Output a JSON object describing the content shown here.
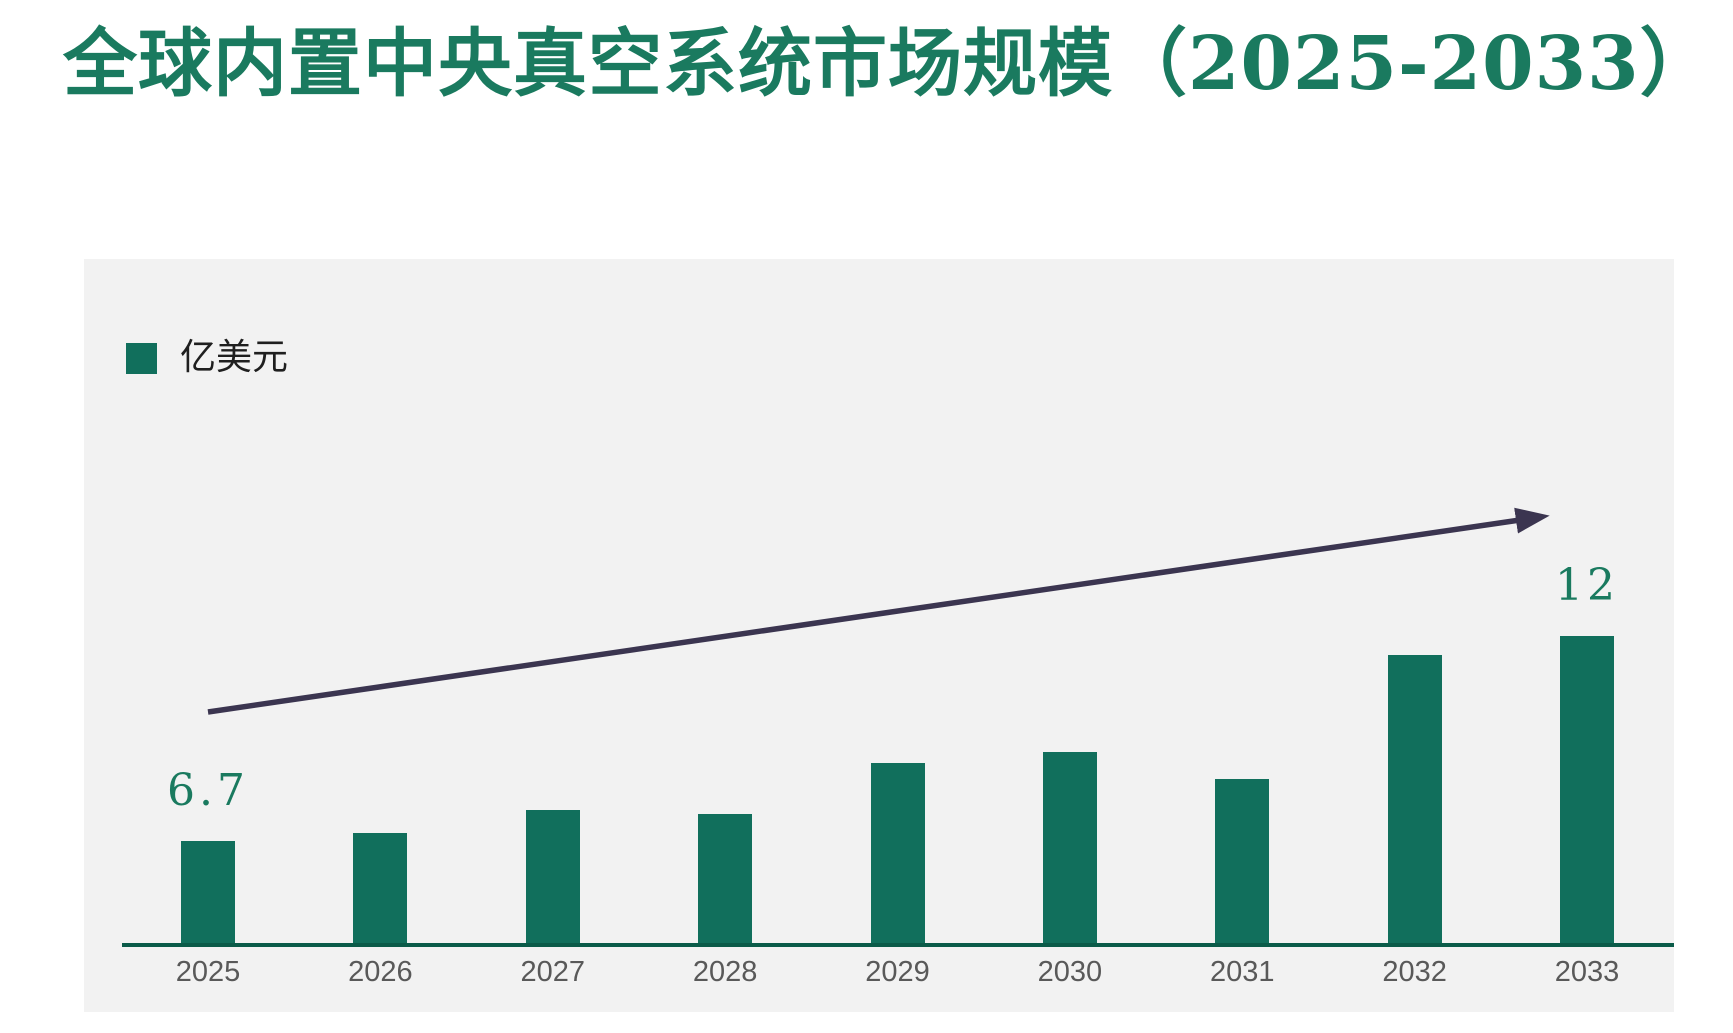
{
  "header": {
    "title": "全球内置中央真空系统市场规模（2025-2033）",
    "title_color": "#1A7A5F"
  },
  "legend": {
    "label": "亿美元",
    "swatch_color": "#116F5C",
    "text_color": "#1F1F1F"
  },
  "chart_data": {
    "type": "bar",
    "title": "全球内置中央真空系统市场规模（2025-2033）",
    "categories": [
      "2025",
      "2026",
      "2027",
      "2028",
      "2029",
      "2030",
      "2031",
      "2032",
      "2033"
    ],
    "values": [
      6.7,
      6.9,
      7.5,
      7.4,
      8.7,
      9.0,
      8.3,
      11.5,
      12
    ],
    "data_labels": [
      "6.7",
      "",
      "",
      "",
      "",
      "",
      "",
      "",
      "12"
    ],
    "unit": "亿美元",
    "xlabel": "",
    "ylabel": "",
    "y_baseline": 4.0,
    "ylim": [
      4.0,
      12.8
    ],
    "grid": false,
    "y_axis_ticks_visible": false,
    "legend_position": "top-left",
    "annotations": [
      {
        "type": "arrow",
        "description": "upward trend arrow from first bar to last bar",
        "color": "#3B3550"
      }
    ],
    "colors": {
      "bar": "#116F5C",
      "axis_line": "#0B5B49",
      "value_label": "#1A7A5F",
      "tick_label": "#595959",
      "panel_background": "#F2F2F2",
      "page_background": "#FFFFFF",
      "arrow": "#3B3550"
    }
  }
}
